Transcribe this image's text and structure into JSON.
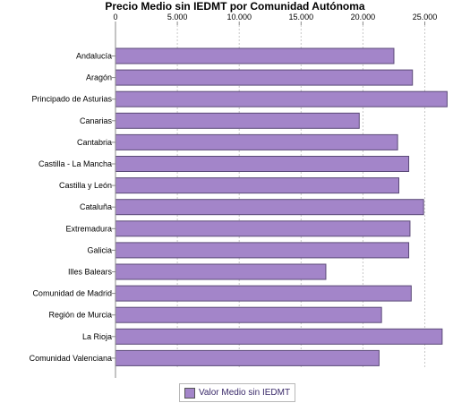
{
  "chart_data": {
    "type": "bar",
    "orientation": "horizontal",
    "title": "Precio Medio sin IEDMT por Comunidad Autónoma",
    "categories": [
      "Andalucía",
      "Aragón",
      "Principado de Asturias",
      "Canarias",
      "Cantabria",
      "Castilla - La Mancha",
      "Castilla y León",
      "Cataluña",
      "Extremadura",
      "Galicia",
      "Illes Balears",
      "Comunidad de Madrid",
      "Región de Murcia",
      "La Rioja",
      "Comunidad Valenciana"
    ],
    "series": [
      {
        "name": "Valor Medio sin IEDMT",
        "color": "#a385c9",
        "values": [
          22500,
          24000,
          26800,
          19700,
          22800,
          23700,
          22900,
          24900,
          23800,
          23700,
          17000,
          23900,
          21500,
          26400,
          21300
        ]
      }
    ],
    "xlim": [
      0,
      28000
    ],
    "x_ticks": [
      0,
      5000,
      10000,
      15000,
      20000,
      25000
    ],
    "x_tick_labels": [
      "0",
      "5.000",
      "10.000",
      "15.000",
      "20.000",
      "25.000"
    ],
    "xaxis_position": "top",
    "grid": "vertical dashed",
    "legend_position": "bottom"
  }
}
